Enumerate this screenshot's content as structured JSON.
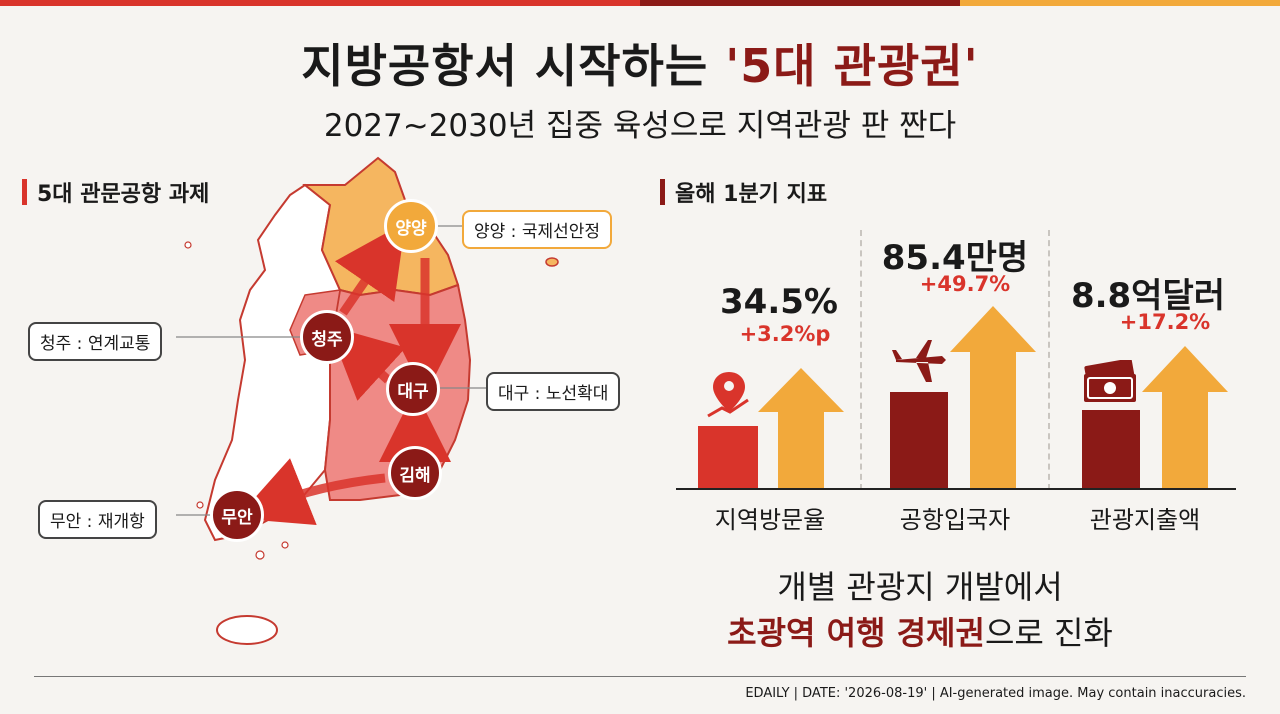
{
  "title": {
    "main": "지방공항서 시작하는 ",
    "accent": "'5대 관광권'"
  },
  "subtitle": "2027~2030년 집중 육성으로 지역관광 판 짠다",
  "left_section": {
    "heading": "5대 관문공항 과제",
    "nodes": [
      {
        "label": "양양",
        "callout": "양양 : 국제선안정"
      },
      {
        "label": "청주",
        "callout": "청주 : 연계교통"
      },
      {
        "label": "대구",
        "callout": "대구 : 노선확대"
      },
      {
        "label": "김해"
      },
      {
        "label": "무안",
        "callout": "무안 : 재개항"
      }
    ]
  },
  "right_section": {
    "heading": "올해 1분기 지표",
    "metrics": [
      {
        "value": "34.5%",
        "change": "+3.2%p",
        "category": "지역방문율",
        "icon": "location-pin-icon"
      },
      {
        "value": "85.4만명",
        "change": "+49.7%",
        "category": "공항입국자",
        "icon": "airplane-icon"
      },
      {
        "value": "8.8억달러",
        "change": "+17.2%",
        "category": "관광지출액",
        "icon": "money-icon"
      }
    ]
  },
  "conclusion": {
    "line1": "개별 관광지 개발에서",
    "line2_accent": "초광역 여행 경제권",
    "line2_rest": "으로 진화"
  },
  "footer": "EDAILY  |  DATE: '2026-08-19'  |  AI-generated image. May contain inaccuracies.",
  "colors": {
    "dark_red": "#8b1a17",
    "red": "#d9342b",
    "orange": "#f2a93b",
    "light_orange": "#f5b660",
    "pink": "#ef8a86"
  }
}
